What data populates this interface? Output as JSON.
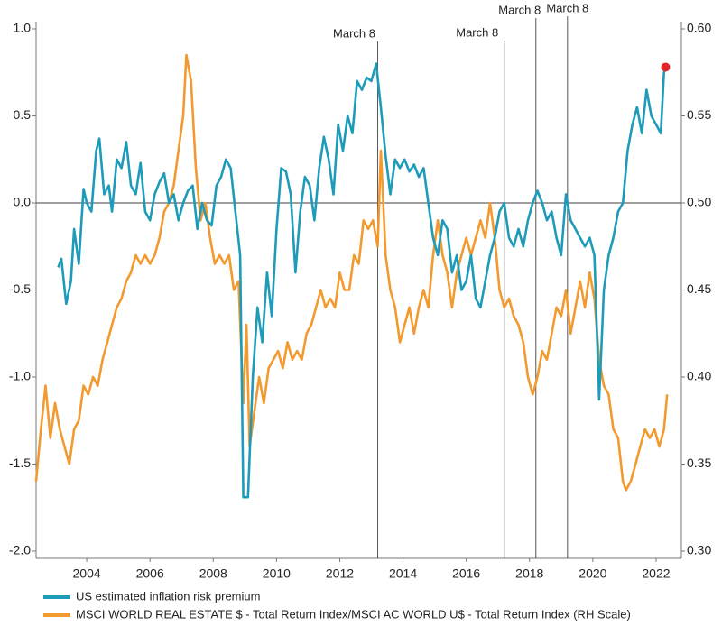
{
  "chart_data": {
    "type": "line",
    "xlim": [
      2002.4,
      2022.8
    ],
    "xticks": [
      2004,
      2006,
      2008,
      2010,
      2012,
      2014,
      2016,
      2018,
      2020,
      2022
    ],
    "ylim": [
      -2.0,
      1.0
    ],
    "yticks": [
      {
        "value": 1.0,
        "label": "1.0"
      },
      {
        "value": 0.5,
        "label": "0.5"
      },
      {
        "value": 0.0,
        "label": "0.0"
      },
      {
        "value": -0.5,
        "label": "-0.5"
      },
      {
        "value": -1.0,
        "label": "-1.0"
      },
      {
        "value": -1.5,
        "label": "-1.5"
      },
      {
        "value": -2.0,
        "label": "-2.0"
      }
    ],
    "y2lim": [
      0.3,
      0.6
    ],
    "y2ticks": [
      {
        "value": 0.6,
        "label": "0.60"
      },
      {
        "value": 0.55,
        "label": "0.55"
      },
      {
        "value": 0.5,
        "label": "0.50"
      },
      {
        "value": 0.45,
        "label": "0.45"
      },
      {
        "value": 0.4,
        "label": "0.40"
      },
      {
        "value": 0.35,
        "label": "0.35"
      },
      {
        "value": 0.3,
        "label": "0.30"
      }
    ],
    "zero_line": true,
    "annotations": [
      {
        "text": "March 8",
        "x": 2013.2
      },
      {
        "text": "March 8",
        "x": 2017.2
      },
      {
        "text": "March 8",
        "x": 2018.2
      },
      {
        "text": "March 8",
        "x": 2019.2
      }
    ],
    "end_marker": {
      "x": 2022.3,
      "y": 0.78,
      "color": "#e0262a"
    },
    "series": [
      {
        "name": "US estimated inflation risk premium",
        "color": "#1e9bb8",
        "x": [
          2003.1,
          2003.2,
          2003.35,
          2003.5,
          2003.6,
          2003.75,
          2003.9,
          2004.0,
          2004.15,
          2004.3,
          2004.4,
          2004.55,
          2004.7,
          2004.8,
          2004.95,
          2005.1,
          2005.25,
          2005.4,
          2005.55,
          2005.7,
          2005.85,
          2006.0,
          2006.15,
          2006.3,
          2006.45,
          2006.6,
          2006.75,
          2006.9,
          2007.05,
          2007.2,
          2007.35,
          2007.5,
          2007.65,
          2007.8,
          2007.95,
          2008.1,
          2008.25,
          2008.4,
          2008.55,
          2008.7,
          2008.85,
          2008.95,
          2009.1,
          2009.25,
          2009.4,
          2009.55,
          2009.7,
          2009.85,
          2010.0,
          2010.15,
          2010.3,
          2010.45,
          2010.6,
          2010.75,
          2010.9,
          2011.05,
          2011.2,
          2011.35,
          2011.5,
          2011.65,
          2011.8,
          2011.95,
          2012.1,
          2012.25,
          2012.4,
          2012.55,
          2012.7,
          2012.85,
          2013.0,
          2013.15,
          2013.3,
          2013.45,
          2013.6,
          2013.75,
          2013.9,
          2014.05,
          2014.2,
          2014.35,
          2014.5,
          2014.65,
          2014.8,
          2014.95,
          2015.1,
          2015.25,
          2015.4,
          2015.55,
          2015.7,
          2015.85,
          2016.0,
          2016.15,
          2016.3,
          2016.45,
          2016.6,
          2016.75,
          2016.9,
          2017.05,
          2017.2,
          2017.35,
          2017.5,
          2017.65,
          2017.8,
          2017.95,
          2018.1,
          2018.25,
          2018.4,
          2018.55,
          2018.7,
          2018.85,
          2019.0,
          2019.15,
          2019.3,
          2019.45,
          2019.6,
          2019.75,
          2019.9,
          2020.05,
          2020.2,
          2020.35,
          2020.5,
          2020.65,
          2020.8,
          2020.95,
          2021.1,
          2021.25,
          2021.4,
          2021.55,
          2021.7,
          2021.85,
          2022.0,
          2022.15,
          2022.25,
          2022.35
        ],
        "values": [
          -0.37,
          -0.32,
          -0.58,
          -0.45,
          -0.15,
          -0.35,
          0.08,
          0.0,
          -0.05,
          0.3,
          0.37,
          0.05,
          0.1,
          -0.05,
          0.25,
          0.2,
          0.35,
          0.1,
          0.05,
          0.23,
          -0.05,
          -0.1,
          0.05,
          0.12,
          0.17,
          0.0,
          0.05,
          -0.1,
          0.0,
          0.07,
          0.1,
          -0.15,
          0.0,
          -0.1,
          -0.13,
          0.1,
          0.15,
          0.25,
          0.2,
          -0.05,
          -0.3,
          -1.69,
          -1.69,
          -1.0,
          -0.6,
          -0.8,
          -0.4,
          -0.65,
          -0.15,
          0.2,
          0.18,
          0.05,
          -0.4,
          -0.05,
          0.15,
          0.1,
          -0.1,
          0.2,
          0.38,
          0.25,
          0.05,
          0.45,
          0.3,
          0.5,
          0.4,
          0.7,
          0.65,
          0.72,
          0.7,
          0.8,
          0.55,
          0.27,
          0.05,
          0.25,
          0.2,
          0.25,
          0.18,
          0.22,
          0.15,
          0.2,
          0.0,
          -0.2,
          -0.3,
          -0.1,
          -0.15,
          -0.4,
          -0.3,
          -0.5,
          -0.45,
          -0.3,
          -0.55,
          -0.6,
          -0.45,
          -0.3,
          -0.2,
          -0.05,
          0.0,
          -0.2,
          -0.25,
          -0.15,
          -0.25,
          -0.1,
          0.0,
          0.07,
          0.0,
          -0.1,
          -0.05,
          -0.2,
          -0.3,
          0.05,
          -0.1,
          -0.15,
          -0.2,
          -0.25,
          -0.2,
          -0.3,
          -1.13,
          -0.5,
          -0.3,
          -0.2,
          -0.05,
          0.0,
          0.3,
          0.45,
          0.55,
          0.4,
          0.65,
          0.5,
          0.45,
          0.4,
          0.75,
          0.8
        ]
      },
      {
        "name": "MSCI WORLD REAL ESTATE $ - Total Return Index/MSCI AC WORLD U$ - Total Return Index (RH Scale)",
        "color": "#f29a2e",
        "axis": "y2",
        "x": [
          2002.4,
          2002.55,
          2002.7,
          2002.85,
          2003.0,
          2003.15,
          2003.3,
          2003.45,
          2003.6,
          2003.75,
          2003.9,
          2004.05,
          2004.2,
          2004.35,
          2004.5,
          2004.65,
          2004.8,
          2004.95,
          2005.1,
          2005.25,
          2005.4,
          2005.55,
          2005.7,
          2005.85,
          2006.0,
          2006.15,
          2006.3,
          2006.45,
          2006.6,
          2006.75,
          2006.9,
          2007.05,
          2007.15,
          2007.3,
          2007.45,
          2007.6,
          2007.75,
          2007.9,
          2008.05,
          2008.2,
          2008.35,
          2008.5,
          2008.65,
          2008.8,
          2008.95,
          2009.05,
          2009.15,
          2009.3,
          2009.45,
          2009.6,
          2009.75,
          2009.9,
          2010.05,
          2010.2,
          2010.35,
          2010.5,
          2010.65,
          2010.8,
          2010.95,
          2011.1,
          2011.25,
          2011.4,
          2011.55,
          2011.7,
          2011.85,
          2012.0,
          2012.15,
          2012.3,
          2012.45,
          2012.6,
          2012.75,
          2012.9,
          2013.05,
          2013.2,
          2013.3,
          2013.45,
          2013.6,
          2013.75,
          2013.9,
          2014.05,
          2014.2,
          2014.35,
          2014.5,
          2014.65,
          2014.8,
          2014.95,
          2015.1,
          2015.25,
          2015.4,
          2015.55,
          2015.7,
          2015.85,
          2016.0,
          2016.15,
          2016.3,
          2016.45,
          2016.6,
          2016.75,
          2016.9,
          2017.05,
          2017.2,
          2017.35,
          2017.5,
          2017.65,
          2017.8,
          2017.95,
          2018.1,
          2018.25,
          2018.4,
          2018.55,
          2018.7,
          2018.85,
          2019.0,
          2019.15,
          2019.3,
          2019.45,
          2019.6,
          2019.75,
          2019.9,
          2020.05,
          2020.2,
          2020.35,
          2020.5,
          2020.65,
          2020.8,
          2020.95,
          2021.05,
          2021.2,
          2021.35,
          2021.5,
          2021.65,
          2021.8,
          2021.95,
          2022.1,
          2022.25,
          2022.35
        ],
        "values": [
          0.34,
          0.37,
          0.395,
          0.365,
          0.385,
          0.37,
          0.36,
          0.35,
          0.37,
          0.375,
          0.395,
          0.39,
          0.4,
          0.395,
          0.41,
          0.42,
          0.43,
          0.44,
          0.445,
          0.455,
          0.46,
          0.47,
          0.465,
          0.47,
          0.465,
          0.47,
          0.48,
          0.495,
          0.5,
          0.51,
          0.53,
          0.55,
          0.585,
          0.57,
          0.52,
          0.49,
          0.5,
          0.48,
          0.465,
          0.47,
          0.465,
          0.47,
          0.45,
          0.455,
          0.385,
          0.43,
          0.36,
          0.38,
          0.4,
          0.385,
          0.405,
          0.41,
          0.415,
          0.405,
          0.42,
          0.41,
          0.415,
          0.41,
          0.425,
          0.43,
          0.44,
          0.45,
          0.44,
          0.445,
          0.44,
          0.46,
          0.45,
          0.45,
          0.47,
          0.465,
          0.49,
          0.485,
          0.49,
          0.475,
          0.53,
          0.47,
          0.45,
          0.44,
          0.42,
          0.43,
          0.44,
          0.425,
          0.44,
          0.45,
          0.44,
          0.47,
          0.49,
          0.47,
          0.46,
          0.44,
          0.46,
          0.47,
          0.48,
          0.47,
          0.48,
          0.49,
          0.48,
          0.5,
          0.48,
          0.45,
          0.44,
          0.445,
          0.435,
          0.43,
          0.42,
          0.4,
          0.39,
          0.4,
          0.415,
          0.41,
          0.425,
          0.44,
          0.435,
          0.45,
          0.425,
          0.44,
          0.455,
          0.44,
          0.46,
          0.445,
          0.41,
          0.395,
          0.39,
          0.37,
          0.365,
          0.34,
          0.335,
          0.34,
          0.35,
          0.36,
          0.37,
          0.365,
          0.37,
          0.36,
          0.37,
          0.39
        ]
      }
    ]
  }
}
